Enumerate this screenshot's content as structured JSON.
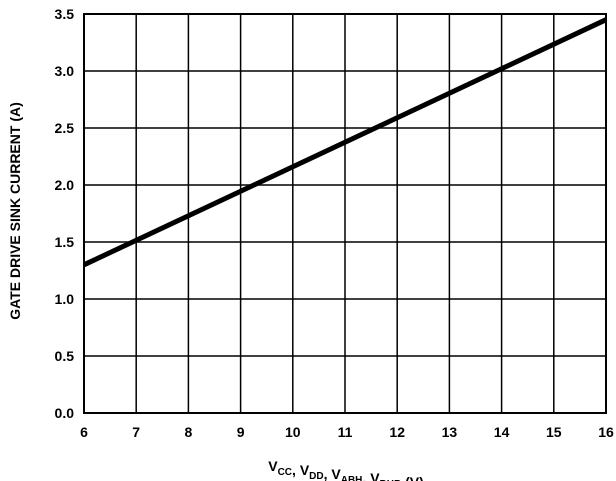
{
  "chart_data": {
    "type": "line",
    "xlabel": {
      "parts": [
        {
          "base": "V",
          "sub": "CC"
        },
        {
          "text": ", "
        },
        {
          "base": "V",
          "sub": "DD"
        },
        {
          "text": ", "
        },
        {
          "base": "V",
          "sub": "ABH"
        },
        {
          "text": ", "
        },
        {
          "base": "V",
          "sub": "BHB"
        },
        {
          "text": " (V)"
        }
      ]
    },
    "ylabel": "GATE DRIVE SINK CURRENT (A)",
    "xlim": [
      6,
      16
    ],
    "ylim": [
      0,
      3.5
    ],
    "x_ticks": [
      "6",
      "7",
      "8",
      "9",
      "10",
      "11",
      "12",
      "13",
      "14",
      "15",
      "16"
    ],
    "y_ticks": [
      "0.0",
      "0.5",
      "1.0",
      "1.5",
      "2.0",
      "2.5",
      "3.0",
      "3.5"
    ],
    "grid": true,
    "series": [
      {
        "x": [
          6,
          16
        ],
        "y": [
          1.3,
          3.45
        ],
        "color": "#000000"
      }
    ]
  }
}
